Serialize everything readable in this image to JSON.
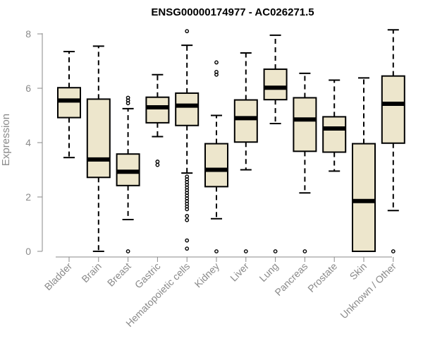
{
  "chart_data": {
    "type": "boxplot",
    "title": "ENSG00000174977 - AC026271.5",
    "ylabel": "Expression",
    "xlabel": "",
    "ylim": [
      0,
      8.2
    ],
    "yticks": [
      0,
      2,
      4,
      6,
      8
    ],
    "box_fill": "#ede6cc",
    "categories": [
      "Bladder",
      "Brain",
      "Breast",
      "Gastric",
      "Hematopoietic cells",
      "Kidney",
      "Liver",
      "Lung",
      "Pancreas",
      "Prostate",
      "Skin",
      "Unknown / Other"
    ],
    "boxes": [
      {
        "whisker_low": 3.45,
        "q1": 4.92,
        "median": 5.55,
        "q3": 6.02,
        "whisker_high": 7.35,
        "outliers": []
      },
      {
        "whisker_low": 0.0,
        "q1": 2.72,
        "median": 3.38,
        "q3": 5.6,
        "whisker_high": 7.55,
        "outliers": []
      },
      {
        "whisker_low": 1.17,
        "q1": 2.42,
        "median": 2.93,
        "q3": 3.58,
        "whisker_high": 5.25,
        "outliers": [
          0.0,
          5.45,
          5.55,
          5.65
        ]
      },
      {
        "whisker_low": 4.22,
        "q1": 4.73,
        "median": 5.3,
        "q3": 5.67,
        "whisker_high": 6.5,
        "outliers": [
          3.18,
          3.3
        ]
      },
      {
        "whisker_low": 2.88,
        "q1": 4.63,
        "median": 5.36,
        "q3": 5.82,
        "whisker_high": 7.58,
        "outliers": [
          8.1,
          0.1,
          0.4,
          1.15,
          1.3,
          1.55,
          1.65,
          1.75,
          1.85,
          1.95,
          2.05,
          2.15,
          2.25,
          2.35,
          2.45,
          2.55,
          2.65,
          2.75
        ]
      },
      {
        "whisker_low": 1.2,
        "q1": 2.38,
        "median": 3.0,
        "q3": 3.96,
        "whisker_high": 5.0,
        "outliers": [
          0.0,
          6.5,
          6.6,
          6.95
        ]
      },
      {
        "whisker_low": 3.0,
        "q1": 4.02,
        "median": 4.9,
        "q3": 5.57,
        "whisker_high": 7.3,
        "outliers": [
          0.0
        ]
      },
      {
        "whisker_low": 4.7,
        "q1": 5.58,
        "median": 6.02,
        "q3": 6.7,
        "whisker_high": 7.95,
        "outliers": [
          0.0
        ]
      },
      {
        "whisker_low": 2.15,
        "q1": 3.68,
        "median": 4.85,
        "q3": 5.65,
        "whisker_high": 6.55,
        "outliers": [
          0.0
        ]
      },
      {
        "whisker_low": 2.95,
        "q1": 3.65,
        "median": 4.52,
        "q3": 4.95,
        "whisker_high": 6.3,
        "outliers": []
      },
      {
        "whisker_low": 0.0,
        "q1": 0.0,
        "median": 1.85,
        "q3": 3.96,
        "whisker_high": 6.38,
        "outliers": []
      },
      {
        "whisker_low": 1.5,
        "q1": 3.98,
        "median": 5.43,
        "q3": 6.45,
        "whisker_high": 8.15,
        "outliers": [
          0.0
        ]
      }
    ]
  }
}
